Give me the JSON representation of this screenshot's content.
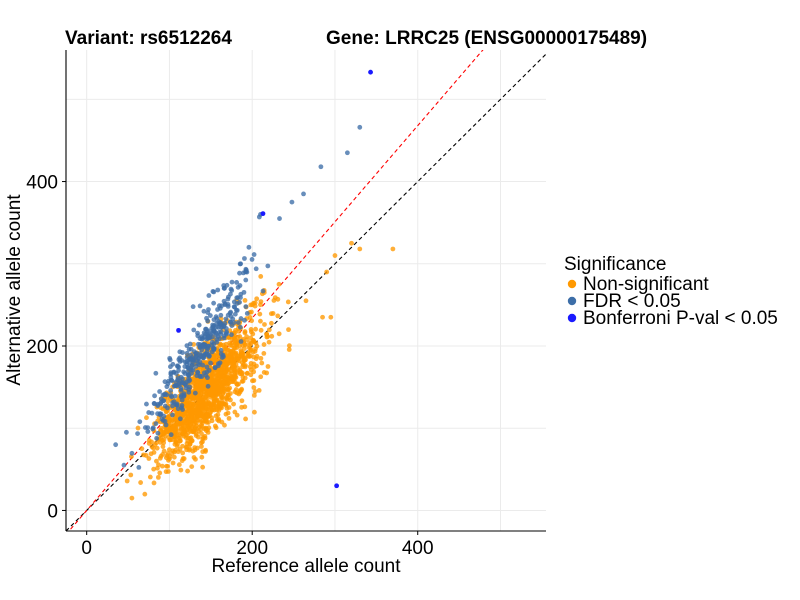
{
  "chart_data": {
    "type": "scatter",
    "title_variant": "Variant: rs6512264",
    "title_gene": "Gene: LRRC25 (ENSG00000175489)",
    "xlabel": "Reference allele count",
    "ylabel": "Alternative allele count",
    "xlim": [
      -25,
      555
    ],
    "ylim": [
      -25,
      560
    ],
    "xticks": [
      0,
      200,
      400
    ],
    "yticks": [
      0,
      200,
      400
    ],
    "grid": true,
    "legend_position": "right",
    "legend_title": "Significance",
    "reference_lines": [
      {
        "name": "identity",
        "slope": 1.0,
        "intercept": 0,
        "color": "#000000",
        "style": "dashed"
      },
      {
        "name": "fit",
        "slope": 1.17,
        "intercept": 0,
        "color": "#ff0000",
        "style": "dashed"
      }
    ],
    "series": [
      {
        "name": "Non-significant",
        "color": "#ff9900",
        "cloud": {
          "n": 1400,
          "seed": 7,
          "ref_mean": 145,
          "ref_sd": 32,
          "ratio": 1.0,
          "spread": 20,
          "ref_min": 28
        },
        "points": [
          {
            "x": 370,
            "y": 318
          },
          {
            "x": 330,
            "y": 318
          },
          {
            "x": 290,
            "y": 290
          },
          {
            "x": 285,
            "y": 235
          },
          {
            "x": 295,
            "y": 235
          },
          {
            "x": 265,
            "y": 255
          },
          {
            "x": 300,
            "y": 310
          },
          {
            "x": 320,
            "y": 325
          }
        ]
      },
      {
        "name": "FDR < 0.05",
        "color": "#3d6ea8",
        "cloud": {
          "n": 380,
          "seed": 13,
          "ref_mean": 138,
          "ref_sd": 32,
          "ratio": 1.4,
          "spread": 14,
          "ref_min": 30
        },
        "points": [
          {
            "x": 330,
            "y": 466
          },
          {
            "x": 315,
            "y": 435
          },
          {
            "x": 283,
            "y": 418
          },
          {
            "x": 248,
            "y": 375
          },
          {
            "x": 233,
            "y": 355
          },
          {
            "x": 210,
            "y": 360
          },
          {
            "x": 262,
            "y": 385
          },
          {
            "x": 196,
            "y": 320
          },
          {
            "x": 186,
            "y": 300
          },
          {
            "x": 35,
            "y": 80
          },
          {
            "x": 48,
            "y": 95
          }
        ]
      },
      {
        "name": "Bonferroni P-val < 0.05",
        "color": "#1a1aff",
        "points": [
          {
            "x": 343,
            "y": 533
          },
          {
            "x": 213,
            "y": 361
          },
          {
            "x": 111,
            "y": 219
          },
          {
            "x": 302,
            "y": 30
          }
        ]
      }
    ]
  }
}
